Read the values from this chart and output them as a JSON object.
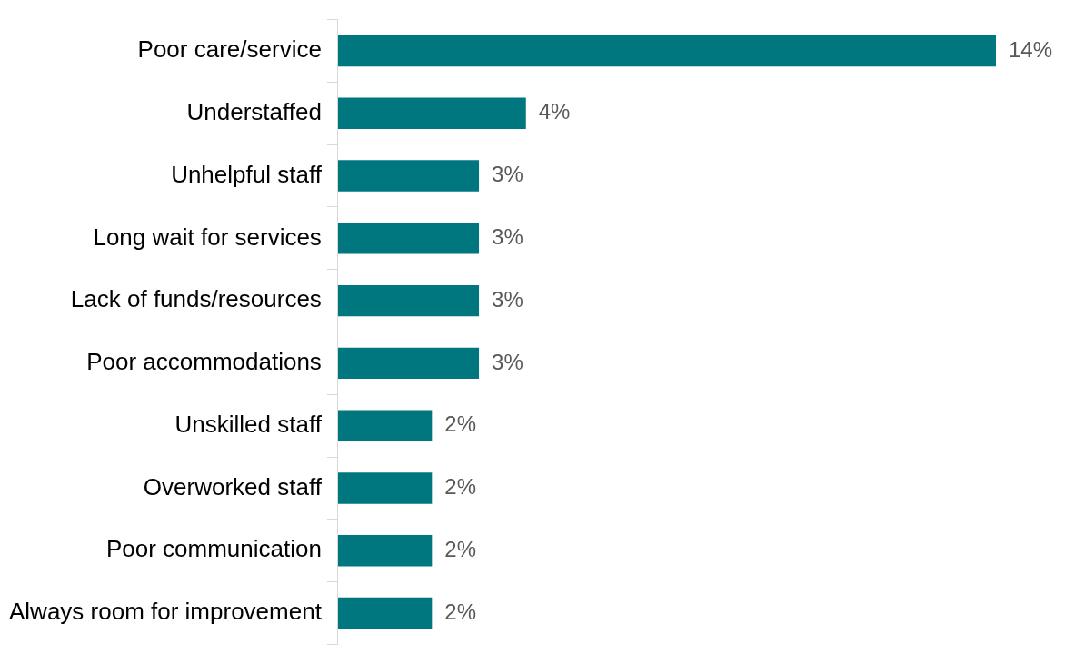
{
  "chart_data": {
    "type": "bar",
    "orientation": "horizontal",
    "categories": [
      "Poor care/service",
      "Understaffed",
      "Unhelpful staff",
      "Long wait for services",
      "Lack of funds/resources",
      "Poor accommodations",
      "Unskilled staff",
      "Overworked staff",
      "Poor communication",
      "Always room for improvement"
    ],
    "values": [
      14,
      4,
      3,
      3,
      3,
      3,
      2,
      2,
      2,
      2
    ],
    "value_labels": [
      "14%",
      "4%",
      "3%",
      "3%",
      "3%",
      "3%",
      "2%",
      "2%",
      "2%",
      "2%"
    ],
    "color": "#00777f"
  }
}
